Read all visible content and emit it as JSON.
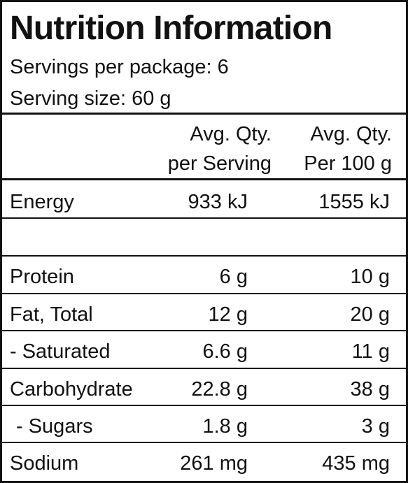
{
  "header": {
    "title": "Nutrition Information",
    "servings": "Servings per package: 6",
    "serving_size": "Serving size: 60 g"
  },
  "table": {
    "columns": [
      [
        "Avg. Qty.",
        "per Serving"
      ],
      [
        "Avg. Qty.",
        "Per 100 g"
      ]
    ],
    "rows": [
      [
        "Energy",
        "933 kJ",
        "1555 kJ"
      ],
      [
        "Protein",
        "6 g",
        "10 g"
      ],
      [
        "Fat, Total",
        "12 g",
        "20 g"
      ],
      [
        "- Saturated",
        "6.6 g",
        "11 g"
      ],
      [
        "Carbohydrate",
        "22.8 g",
        "38 g"
      ],
      [
        "- Sugars",
        "1.8 g",
        "3 g"
      ],
      [
        "Sodium",
        "261 mg",
        "435 mg"
      ]
    ]
  }
}
